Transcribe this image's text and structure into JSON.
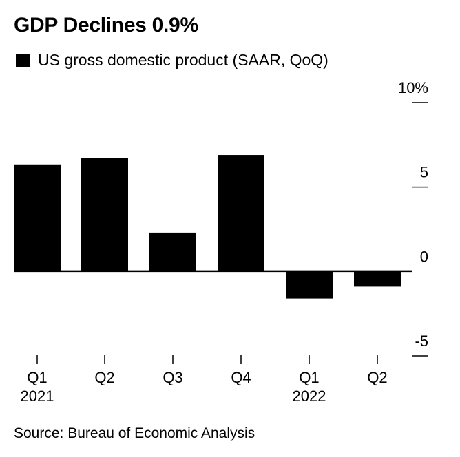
{
  "title": "GDP Declines 0.9%",
  "colors": {
    "bar": "#000000",
    "axis": "#000000",
    "background": "#ffffff"
  },
  "chart_data": {
    "type": "bar",
    "title": "GDP Declines 0.9%",
    "categories": [
      "Q1",
      "Q2",
      "Q3",
      "Q4",
      "Q1",
      "Q2"
    ],
    "category_years": [
      "2021",
      "",
      "",
      "",
      "2022",
      ""
    ],
    "series": [
      {
        "name": "US gross domestic product (SAAR, QoQ)",
        "values": [
          6.3,
          6.7,
          2.3,
          6.9,
          -1.6,
          -0.9
        ],
        "color": "#000000"
      }
    ],
    "y_ticks": [
      10,
      5,
      0,
      -5
    ],
    "y_tick_labels": [
      "10%",
      "5",
      "0",
      "-5"
    ],
    "ylim": [
      -5,
      10
    ],
    "xlabel": "",
    "ylabel": "",
    "y_axis_position": "right",
    "legend_position": "top-left",
    "grid": false
  },
  "source": "Source: Bureau of Economic Analysis"
}
